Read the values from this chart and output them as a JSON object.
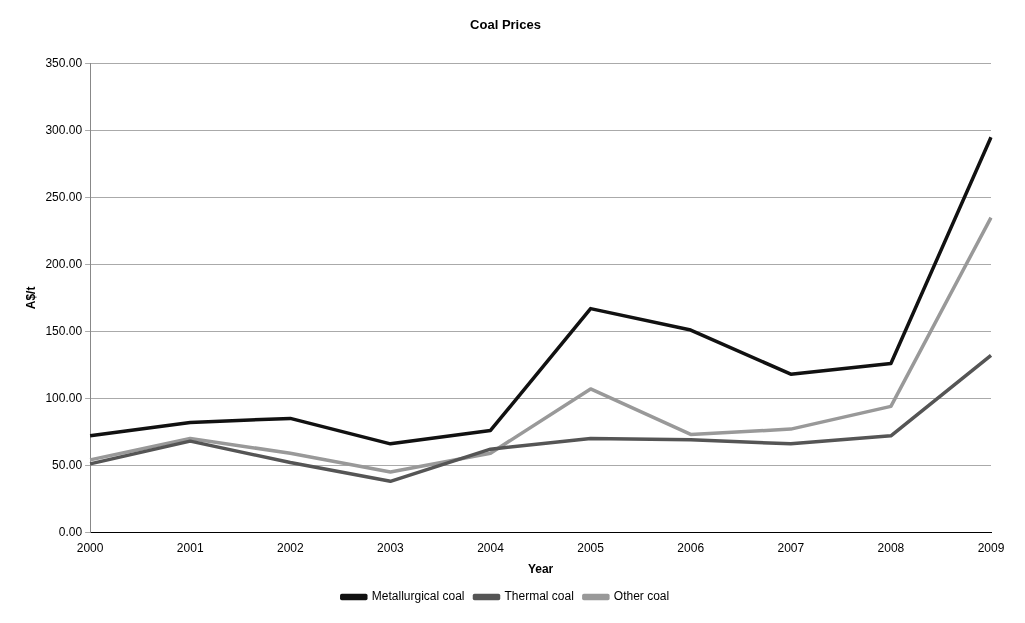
{
  "chart_data": {
    "type": "line",
    "title": "Coal Prices",
    "xlabel": "Year",
    "ylabel": "A$/t",
    "categories": [
      "2000",
      "2001",
      "2002",
      "2003",
      "2004",
      "2005",
      "2006",
      "2007",
      "2008",
      "2009"
    ],
    "series": [
      {
        "name": "Metallurgical coal",
        "color": "#111111",
        "values": [
          72,
          82,
          85,
          66,
          76,
          167,
          151,
          118,
          126,
          295
        ]
      },
      {
        "name": "Thermal coal",
        "color": "#555555",
        "values": [
          51,
          68,
          52,
          38,
          62,
          70,
          69,
          66,
          72,
          132
        ]
      },
      {
        "name": "Other coal",
        "color": "#999999",
        "values": [
          54,
          70,
          59,
          45,
          59,
          107,
          73,
          77,
          94,
          235
        ]
      }
    ],
    "ylim": [
      0,
      350
    ],
    "yticks": [
      {
        "value": 0,
        "label": "0.00"
      },
      {
        "value": 50,
        "label": "50.00"
      },
      {
        "value": 100,
        "label": "100.00"
      },
      {
        "value": 150,
        "label": "150.00"
      },
      {
        "value": 200,
        "label": "200.00"
      },
      {
        "value": 250,
        "label": "250.00"
      },
      {
        "value": 300,
        "label": "300.00"
      },
      {
        "value": 350,
        "label": "350.00"
      }
    ],
    "grid": "y",
    "legend": "bottom",
    "marker": "none",
    "line_style": "solid"
  }
}
